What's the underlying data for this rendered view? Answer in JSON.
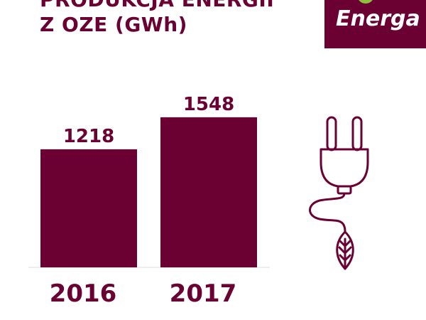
{
  "header": {
    "title_line_1": "PRODUKCJA ENERGII",
    "title_line_2": "Z OZE  (GWh)"
  },
  "logo": {
    "text": "Energa"
  },
  "colors": {
    "brand": "#6b0033",
    "logo_leaf": "#8fbf3f",
    "background": "#ffffff"
  },
  "icon": "plug-with-leaf-icon",
  "chart_data": {
    "type": "bar",
    "title": "PRODUKCJA ENERGII Z OZE (GWh)",
    "categories": [
      "2016",
      "2017"
    ],
    "values": [
      1218,
      1548
    ],
    "xlabel": "",
    "ylabel": "",
    "ylim": [
      0,
      1760
    ],
    "grid": false,
    "legend": "none"
  }
}
